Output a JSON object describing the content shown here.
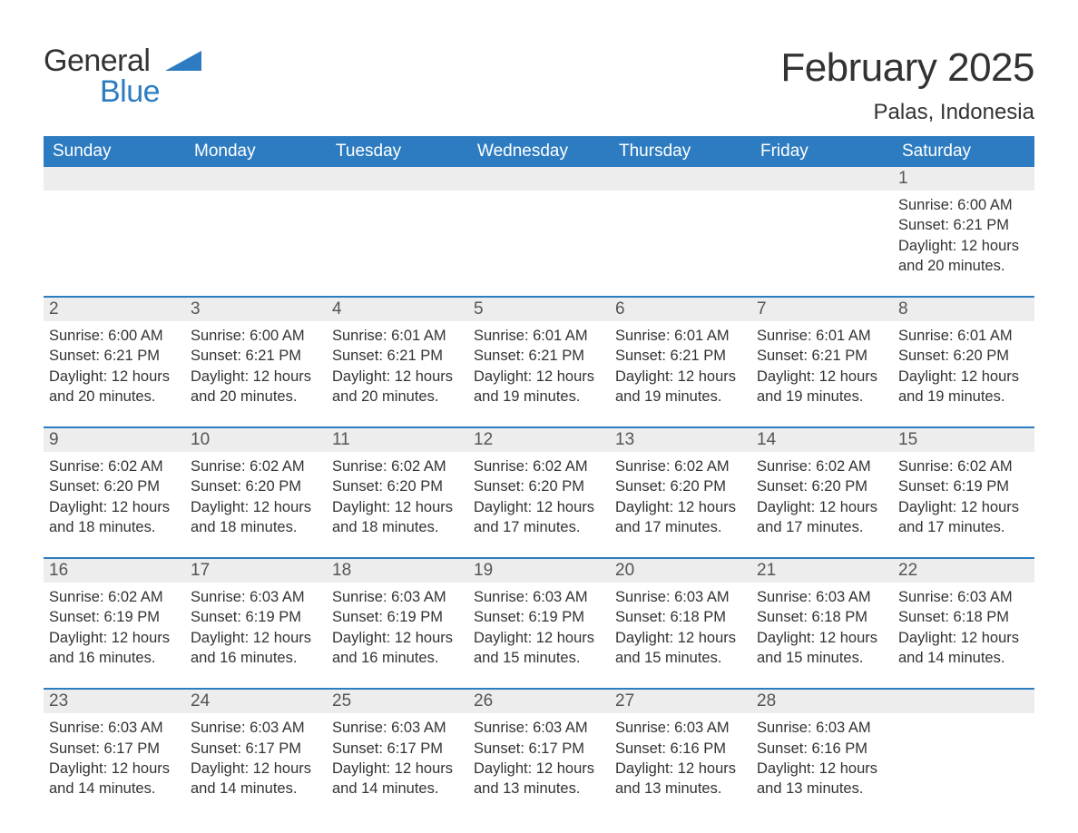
{
  "logo": {
    "text1": "General",
    "text2": "Blue"
  },
  "title": "February 2025",
  "location": "Palas, Indonesia",
  "colors": {
    "accent": "#2d7cc1",
    "header_text": "#ffffff",
    "strip_bg": "#ededed",
    "body_text": "#333333",
    "muted_text": "#555555",
    "background": "#ffffff"
  },
  "typography": {
    "title_fontsize": 44,
    "location_fontsize": 24,
    "dayheader_fontsize": 19,
    "daynum_fontsize": 19,
    "body_fontsize": 16.5,
    "logo_fontsize": 34
  },
  "layout": {
    "columns": 7,
    "cell_min_height": 110,
    "strip_height": 26,
    "week_gap": 18,
    "week_border_top": "2px solid #2d7cc1"
  },
  "day_headers": [
    "Sunday",
    "Monday",
    "Tuesday",
    "Wednesday",
    "Thursday",
    "Friday",
    "Saturday"
  ],
  "weeks": [
    [
      null,
      null,
      null,
      null,
      null,
      null,
      {
        "n": "1",
        "sunrise": "Sunrise: 6:00 AM",
        "sunset": "Sunset: 6:21 PM",
        "daylight1": "Daylight: 12 hours",
        "daylight2": "and 20 minutes."
      }
    ],
    [
      {
        "n": "2",
        "sunrise": "Sunrise: 6:00 AM",
        "sunset": "Sunset: 6:21 PM",
        "daylight1": "Daylight: 12 hours",
        "daylight2": "and 20 minutes."
      },
      {
        "n": "3",
        "sunrise": "Sunrise: 6:00 AM",
        "sunset": "Sunset: 6:21 PM",
        "daylight1": "Daylight: 12 hours",
        "daylight2": "and 20 minutes."
      },
      {
        "n": "4",
        "sunrise": "Sunrise: 6:01 AM",
        "sunset": "Sunset: 6:21 PM",
        "daylight1": "Daylight: 12 hours",
        "daylight2": "and 20 minutes."
      },
      {
        "n": "5",
        "sunrise": "Sunrise: 6:01 AM",
        "sunset": "Sunset: 6:21 PM",
        "daylight1": "Daylight: 12 hours",
        "daylight2": "and 19 minutes."
      },
      {
        "n": "6",
        "sunrise": "Sunrise: 6:01 AM",
        "sunset": "Sunset: 6:21 PM",
        "daylight1": "Daylight: 12 hours",
        "daylight2": "and 19 minutes."
      },
      {
        "n": "7",
        "sunrise": "Sunrise: 6:01 AM",
        "sunset": "Sunset: 6:21 PM",
        "daylight1": "Daylight: 12 hours",
        "daylight2": "and 19 minutes."
      },
      {
        "n": "8",
        "sunrise": "Sunrise: 6:01 AM",
        "sunset": "Sunset: 6:20 PM",
        "daylight1": "Daylight: 12 hours",
        "daylight2": "and 19 minutes."
      }
    ],
    [
      {
        "n": "9",
        "sunrise": "Sunrise: 6:02 AM",
        "sunset": "Sunset: 6:20 PM",
        "daylight1": "Daylight: 12 hours",
        "daylight2": "and 18 minutes."
      },
      {
        "n": "10",
        "sunrise": "Sunrise: 6:02 AM",
        "sunset": "Sunset: 6:20 PM",
        "daylight1": "Daylight: 12 hours",
        "daylight2": "and 18 minutes."
      },
      {
        "n": "11",
        "sunrise": "Sunrise: 6:02 AM",
        "sunset": "Sunset: 6:20 PM",
        "daylight1": "Daylight: 12 hours",
        "daylight2": "and 18 minutes."
      },
      {
        "n": "12",
        "sunrise": "Sunrise: 6:02 AM",
        "sunset": "Sunset: 6:20 PM",
        "daylight1": "Daylight: 12 hours",
        "daylight2": "and 17 minutes."
      },
      {
        "n": "13",
        "sunrise": "Sunrise: 6:02 AM",
        "sunset": "Sunset: 6:20 PM",
        "daylight1": "Daylight: 12 hours",
        "daylight2": "and 17 minutes."
      },
      {
        "n": "14",
        "sunrise": "Sunrise: 6:02 AM",
        "sunset": "Sunset: 6:20 PM",
        "daylight1": "Daylight: 12 hours",
        "daylight2": "and 17 minutes."
      },
      {
        "n": "15",
        "sunrise": "Sunrise: 6:02 AM",
        "sunset": "Sunset: 6:19 PM",
        "daylight1": "Daylight: 12 hours",
        "daylight2": "and 17 minutes."
      }
    ],
    [
      {
        "n": "16",
        "sunrise": "Sunrise: 6:02 AM",
        "sunset": "Sunset: 6:19 PM",
        "daylight1": "Daylight: 12 hours",
        "daylight2": "and 16 minutes."
      },
      {
        "n": "17",
        "sunrise": "Sunrise: 6:03 AM",
        "sunset": "Sunset: 6:19 PM",
        "daylight1": "Daylight: 12 hours",
        "daylight2": "and 16 minutes."
      },
      {
        "n": "18",
        "sunrise": "Sunrise: 6:03 AM",
        "sunset": "Sunset: 6:19 PM",
        "daylight1": "Daylight: 12 hours",
        "daylight2": "and 16 minutes."
      },
      {
        "n": "19",
        "sunrise": "Sunrise: 6:03 AM",
        "sunset": "Sunset: 6:19 PM",
        "daylight1": "Daylight: 12 hours",
        "daylight2": "and 15 minutes."
      },
      {
        "n": "20",
        "sunrise": "Sunrise: 6:03 AM",
        "sunset": "Sunset: 6:18 PM",
        "daylight1": "Daylight: 12 hours",
        "daylight2": "and 15 minutes."
      },
      {
        "n": "21",
        "sunrise": "Sunrise: 6:03 AM",
        "sunset": "Sunset: 6:18 PM",
        "daylight1": "Daylight: 12 hours",
        "daylight2": "and 15 minutes."
      },
      {
        "n": "22",
        "sunrise": "Sunrise: 6:03 AM",
        "sunset": "Sunset: 6:18 PM",
        "daylight1": "Daylight: 12 hours",
        "daylight2": "and 14 minutes."
      }
    ],
    [
      {
        "n": "23",
        "sunrise": "Sunrise: 6:03 AM",
        "sunset": "Sunset: 6:17 PM",
        "daylight1": "Daylight: 12 hours",
        "daylight2": "and 14 minutes."
      },
      {
        "n": "24",
        "sunrise": "Sunrise: 6:03 AM",
        "sunset": "Sunset: 6:17 PM",
        "daylight1": "Daylight: 12 hours",
        "daylight2": "and 14 minutes."
      },
      {
        "n": "25",
        "sunrise": "Sunrise: 6:03 AM",
        "sunset": "Sunset: 6:17 PM",
        "daylight1": "Daylight: 12 hours",
        "daylight2": "and 14 minutes."
      },
      {
        "n": "26",
        "sunrise": "Sunrise: 6:03 AM",
        "sunset": "Sunset: 6:17 PM",
        "daylight1": "Daylight: 12 hours",
        "daylight2": "and 13 minutes."
      },
      {
        "n": "27",
        "sunrise": "Sunrise: 6:03 AM",
        "sunset": "Sunset: 6:16 PM",
        "daylight1": "Daylight: 12 hours",
        "daylight2": "and 13 minutes."
      },
      {
        "n": "28",
        "sunrise": "Sunrise: 6:03 AM",
        "sunset": "Sunset: 6:16 PM",
        "daylight1": "Daylight: 12 hours",
        "daylight2": "and 13 minutes."
      },
      null
    ]
  ]
}
